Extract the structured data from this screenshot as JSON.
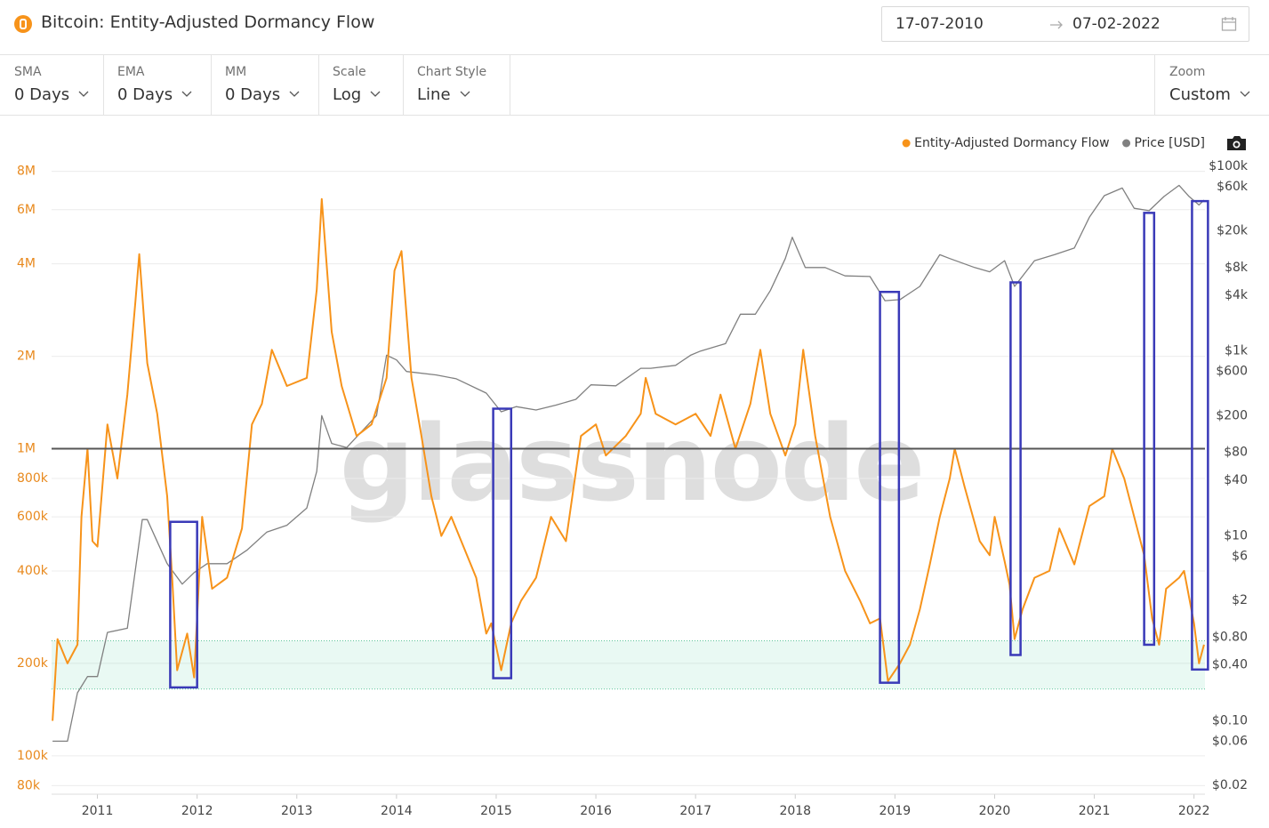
{
  "header": {
    "title": "Bitcoin: Entity-Adjusted Dormancy Flow",
    "date_from": "17-07-2010",
    "date_to": "07-02-2022"
  },
  "controls": [
    {
      "label": "SMA",
      "value": "0 Days"
    },
    {
      "label": "EMA",
      "value": "0 Days"
    },
    {
      "label": "MM",
      "value": "0 Days"
    },
    {
      "label": "Scale",
      "value": "Log"
    },
    {
      "label": "Chart Style",
      "value": "Line"
    }
  ],
  "zoom": {
    "label": "Zoom",
    "value": "Custom"
  },
  "chart_data": {
    "type": "line",
    "watermark": "glassnode",
    "log_scale": true,
    "grid": true,
    "legend": "top-right",
    "xlim": [
      2010.54,
      2022.11
    ],
    "xticks": [
      2011,
      2012,
      2013,
      2014,
      2015,
      2016,
      2017,
      2018,
      2019,
      2020,
      2021,
      2022
    ],
    "ylim": [
      75000,
      9000000
    ],
    "yticks": [
      {
        "value": 80000,
        "label": "80k"
      },
      {
        "value": 100000,
        "label": "100k"
      },
      {
        "value": 200000,
        "label": "200k"
      },
      {
        "value": 400000,
        "label": "400k"
      },
      {
        "value": 600000,
        "label": "600k"
      },
      {
        "value": 800000,
        "label": "800k"
      },
      {
        "value": 1000000,
        "label": "1M"
      },
      {
        "value": 2000000,
        "label": "2M"
      },
      {
        "value": 4000000,
        "label": "4M"
      },
      {
        "value": 6000000,
        "label": "6M"
      },
      {
        "value": 8000000,
        "label": "8M"
      }
    ],
    "y2lim": [
      0.016,
      130000
    ],
    "y2ticks": [
      {
        "value": 0.02,
        "label": "$0.02"
      },
      {
        "value": 0.06,
        "label": "$0.06"
      },
      {
        "value": 0.1,
        "label": "$0.10"
      },
      {
        "value": 0.4,
        "label": "$0.40"
      },
      {
        "value": 0.8,
        "label": "$0.80"
      },
      {
        "value": 2,
        "label": "$2"
      },
      {
        "value": 6,
        "label": "$6"
      },
      {
        "value": 10,
        "label": "$10"
      },
      {
        "value": 40,
        "label": "$40"
      },
      {
        "value": 80,
        "label": "$80"
      },
      {
        "value": 200,
        "label": "$200"
      },
      {
        "value": 600,
        "label": "$600"
      },
      {
        "value": 1000,
        "label": "$1k"
      },
      {
        "value": 4000,
        "label": "$4k"
      },
      {
        "value": 8000,
        "label": "$8k"
      },
      {
        "value": 20000,
        "label": "$20k"
      },
      {
        "value": 60000,
        "label": "$60k"
      },
      {
        "value": 100000,
        "label": "$100k"
      }
    ],
    "reference_line": 1000000,
    "band": [
      165000,
      237000
    ],
    "boxes": [
      {
        "x": [
          2011.73,
          2012.0
        ],
        "y": [
          167000,
          578000
        ]
      },
      {
        "x": [
          2014.97,
          2015.15
        ],
        "y": [
          179000,
          1350000
        ]
      },
      {
        "x": [
          2018.85,
          2019.04
        ],
        "y": [
          173000,
          3240000
        ]
      },
      {
        "x": [
          2020.16,
          2020.26
        ],
        "y": [
          213000,
          3480000
        ]
      },
      {
        "x": [
          2021.5,
          2021.6
        ],
        "y": [
          230000,
          5860000
        ]
      },
      {
        "x": [
          2021.98,
          2022.14
        ],
        "y": [
          191000,
          6400000
        ]
      }
    ],
    "series": [
      {
        "name": "Entity-Adjusted Dormancy Flow",
        "color": "#f7931a",
        "x": [
          2010.55,
          2010.6,
          2010.7,
          2010.8,
          2010.84,
          2010.9,
          2010.95,
          2011.0,
          2011.1,
          2011.2,
          2011.3,
          2011.38,
          2011.42,
          2011.5,
          2011.6,
          2011.7,
          2011.75,
          2011.8,
          2011.9,
          2011.97,
          2012.05,
          2012.15,
          2012.3,
          2012.45,
          2012.55,
          2012.65,
          2012.75,
          2012.9,
          2013.1,
          2013.2,
          2013.25,
          2013.35,
          2013.45,
          2013.6,
          2013.75,
          2013.9,
          2013.98,
          2014.05,
          2014.15,
          2014.25,
          2014.35,
          2014.45,
          2014.55,
          2014.65,
          2014.8,
          2014.9,
          2014.95,
          2015.05,
          2015.15,
          2015.25,
          2015.4,
          2015.55,
          2015.7,
          2015.85,
          2016.0,
          2016.1,
          2016.3,
          2016.45,
          2016.5,
          2016.6,
          2016.8,
          2017.0,
          2017.15,
          2017.25,
          2017.4,
          2017.55,
          2017.65,
          2017.75,
          2017.9,
          2018.0,
          2018.08,
          2018.2,
          2018.35,
          2018.5,
          2018.65,
          2018.75,
          2018.85,
          2018.93,
          2019.05,
          2019.15,
          2019.25,
          2019.35,
          2019.45,
          2019.55,
          2019.6,
          2019.7,
          2019.85,
          2019.95,
          2020.0,
          2020.1,
          2020.15,
          2020.2,
          2020.28,
          2020.4,
          2020.55,
          2020.65,
          2020.8,
          2020.95,
          2021.1,
          2021.18,
          2021.3,
          2021.4,
          2021.5,
          2021.58,
          2021.65,
          2021.72,
          2021.85,
          2021.9,
          2022.0,
          2022.05,
          2022.1
        ],
        "values": [
          130000,
          240000,
          200000,
          230000,
          600000,
          1000000,
          500000,
          480000,
          1200000,
          800000,
          1500000,
          3000000,
          4300000,
          1900000,
          1300000,
          700000,
          380000,
          190000,
          250000,
          180000,
          600000,
          350000,
          380000,
          550000,
          1200000,
          1400000,
          2100000,
          1600000,
          1700000,
          3300000,
          6500000,
          2400000,
          1600000,
          1100000,
          1200000,
          1700000,
          3800000,
          4400000,
          1700000,
          1100000,
          700000,
          520000,
          600000,
          500000,
          380000,
          250000,
          270000,
          190000,
          270000,
          320000,
          380000,
          600000,
          500000,
          1100000,
          1200000,
          950000,
          1100000,
          1300000,
          1700000,
          1300000,
          1200000,
          1300000,
          1100000,
          1500000,
          1000000,
          1400000,
          2100000,
          1300000,
          950000,
          1200000,
          2100000,
          1100000,
          600000,
          400000,
          320000,
          270000,
          280000,
          175000,
          200000,
          230000,
          300000,
          420000,
          600000,
          800000,
          1000000,
          750000,
          500000,
          450000,
          600000,
          430000,
          360000,
          240000,
          300000,
          380000,
          400000,
          550000,
          420000,
          650000,
          700000,
          1000000,
          800000,
          600000,
          450000,
          280000,
          230000,
          350000,
          380000,
          400000,
          270000,
          200000,
          230000
        ]
      },
      {
        "name": "Price [USD]",
        "color": "#808080",
        "axis": "y2",
        "x": [
          2010.55,
          2010.7,
          2010.8,
          2010.9,
          2011.0,
          2011.1,
          2011.3,
          2011.45,
          2011.5,
          2011.7,
          2011.85,
          2011.97,
          2012.1,
          2012.3,
          2012.5,
          2012.7,
          2012.9,
          2013.1,
          2013.2,
          2013.25,
          2013.35,
          2013.5,
          2013.8,
          2013.9,
          2014.0,
          2014.1,
          2014.4,
          2014.6,
          2014.9,
          2015.05,
          2015.2,
          2015.4,
          2015.6,
          2015.8,
          2015.95,
          2016.2,
          2016.45,
          2016.55,
          2016.8,
          2016.95,
          2017.05,
          2017.3,
          2017.45,
          2017.6,
          2017.75,
          2017.9,
          2017.97,
          2018.1,
          2018.3,
          2018.5,
          2018.75,
          2018.9,
          2019.05,
          2019.25,
          2019.45,
          2019.55,
          2019.8,
          2019.95,
          2020.1,
          2020.2,
          2020.4,
          2020.6,
          2020.8,
          2020.95,
          2021.1,
          2021.28,
          2021.4,
          2021.55,
          2021.7,
          2021.85,
          2021.95,
          2022.05,
          2022.1
        ],
        "values": [
          0.06,
          0.06,
          0.2,
          0.3,
          0.3,
          0.9,
          1.0,
          15,
          15,
          5,
          3,
          4,
          5,
          5,
          7,
          11,
          13,
          20,
          50,
          200,
          100,
          90,
          200,
          900,
          800,
          600,
          550,
          500,
          350,
          220,
          250,
          230,
          260,
          300,
          430,
          420,
          650,
          650,
          700,
          900,
          1000,
          1200,
          2500,
          2500,
          4500,
          10000,
          17000,
          8000,
          8000,
          6500,
          6400,
          3500,
          3600,
          5000,
          11000,
          10000,
          8000,
          7200,
          9500,
          5000,
          9500,
          11000,
          13000,
          28000,
          48000,
          58000,
          35000,
          33000,
          47000,
          62000,
          47000,
          38000,
          43000
        ]
      }
    ]
  }
}
